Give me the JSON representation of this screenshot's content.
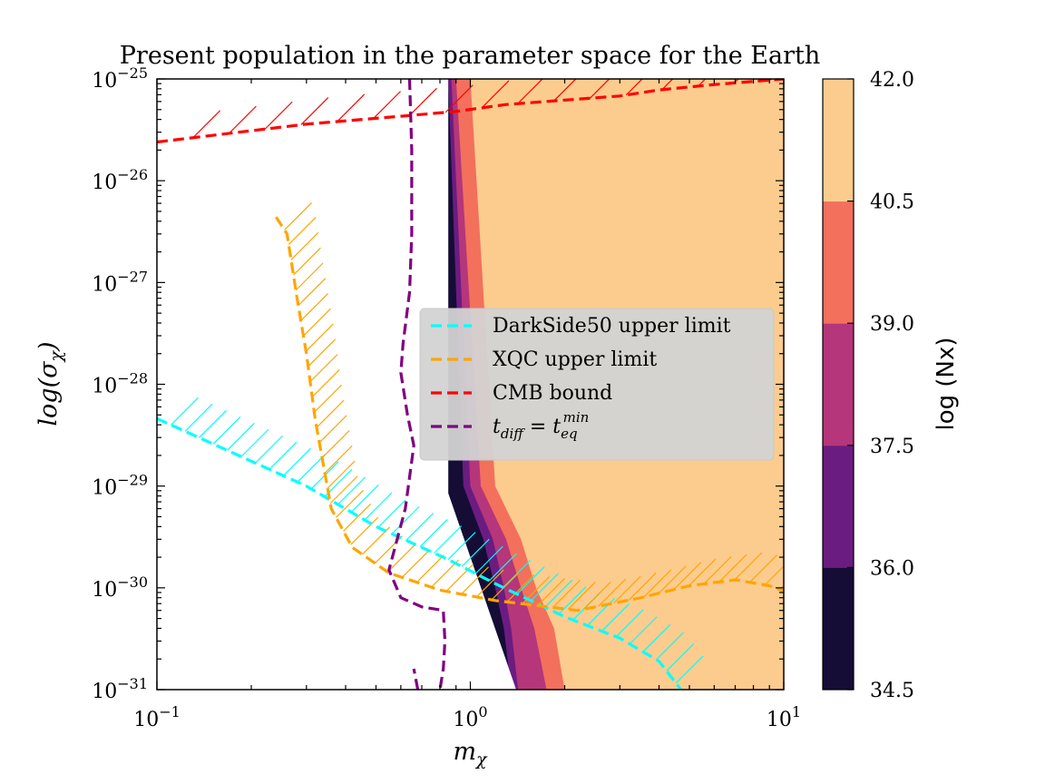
{
  "chart_data": {
    "type": "contourf",
    "title": "Present population in the parameter space for the Earth",
    "xlabel": "m_χ",
    "ylabel": "log(σ_χ)",
    "x_scale": "log",
    "y_scale": "log",
    "xlim": [
      0.1,
      10
    ],
    "ylim": [
      1e-31,
      1e-25
    ],
    "x_ticks": [
      {
        "value": 0.1,
        "base": "10",
        "exp": "−1"
      },
      {
        "value": 1,
        "base": "10",
        "exp": "0"
      },
      {
        "value": 10,
        "base": "10",
        "exp": "1"
      }
    ],
    "y_ticks": [
      {
        "value": 1e-25,
        "base": "10",
        "exp": "−25"
      },
      {
        "value": 1e-26,
        "base": "10",
        "exp": "−26"
      },
      {
        "value": 1e-27,
        "base": "10",
        "exp": "−27"
      },
      {
        "value": 1e-28,
        "base": "10",
        "exp": "−28"
      },
      {
        "value": 1e-29,
        "base": "10",
        "exp": "−29"
      },
      {
        "value": 1e-30,
        "base": "10",
        "exp": "−30"
      },
      {
        "value": 1e-31,
        "base": "10",
        "exp": "−31"
      }
    ],
    "colorbar": {
      "label": "log (Nx)",
      "levels": [
        "34.5",
        "36.0",
        "37.5",
        "39.0",
        "40.5",
        "42.0"
      ],
      "colors": [
        "#150d36",
        "#6b1c81",
        "#b5367a",
        "#f3705c",
        "#fccc8e"
      ]
    },
    "contour_region": {
      "boundary": [
        [
          0.85,
          1e-25
        ],
        [
          0.85,
          8.5e-30
        ],
        [
          1.4,
          1e-31
        ],
        [
          10,
          1e-31
        ],
        [
          10,
          1e-25
        ]
      ],
      "band_bounds_mchi": [
        [
          0.85,
          0.92,
          1.05,
          1.15,
          1.22,
          1.3
        ],
        [
          0.85,
          0.95,
          1.1,
          1.2,
          1.28,
          1.35
        ],
        [
          0.87,
          1.0,
          1.18,
          1.28,
          1.35,
          1.42
        ],
        [
          0.9,
          1.08,
          1.3,
          1.45,
          1.6,
          1.75
        ],
        [
          1.0,
          1.2,
          1.45,
          1.62,
          1.85,
          2.0
        ]
      ]
    },
    "series": [
      {
        "name": "DarkSide50 upper limit",
        "color": "#00ffff",
        "style": "dashed",
        "points": [
          [
            0.1,
            4.6e-29
          ],
          [
            0.3,
            1e-29
          ],
          [
            0.5,
            4e-30
          ],
          [
            0.85,
            1.9e-30
          ],
          [
            1.2,
            1.1e-30
          ],
          [
            2.0,
            5.2e-31
          ],
          [
            3.0,
            3.2e-31
          ],
          [
            4.0,
            1.9e-31
          ],
          [
            4.7,
            1e-31
          ]
        ]
      },
      {
        "name": "XQC upper limit",
        "color": "#ffa500",
        "style": "dashed",
        "points": [
          [
            0.24,
            4.4e-27
          ],
          [
            0.26,
            3e-27
          ],
          [
            0.28,
            7e-28
          ],
          [
            0.3,
            2e-28
          ],
          [
            0.32,
            4.5e-29
          ],
          [
            0.36,
            6e-30
          ],
          [
            0.42,
            2.5e-30
          ],
          [
            0.55,
            1.4e-30
          ],
          [
            0.8,
            9.5e-31
          ],
          [
            1.2,
            7.5e-31
          ],
          [
            2.2,
            6e-31
          ],
          [
            3.5,
            8e-31
          ],
          [
            5.0,
            1.05e-30
          ],
          [
            7.0,
            1.2e-30
          ],
          [
            9.0,
            1.05e-30
          ],
          [
            10,
            9.3e-31
          ]
        ]
      },
      {
        "name": "CMB bound",
        "color": "#ff0000",
        "style": "dashed",
        "points": [
          [
            0.1,
            2.4e-26
          ],
          [
            0.3,
            3.6e-26
          ],
          [
            0.6,
            4.3e-26
          ],
          [
            0.9,
            4.8e-26
          ],
          [
            1.3,
            5.6e-26
          ],
          [
            2.0,
            6.2e-26
          ],
          [
            3.0,
            6.8e-26
          ],
          [
            4.0,
            7.8e-26
          ],
          [
            6.0,
            8.8e-26
          ],
          [
            10,
            1e-25
          ]
        ]
      },
      {
        "name": "t_diff = t_eq^min",
        "color": "#800080",
        "style": "dashed",
        "points": [
          [
            0.64,
            1e-25
          ],
          [
            0.65,
            2e-26
          ],
          [
            0.65,
            3e-27
          ],
          [
            0.64,
            8e-28
          ],
          [
            0.61,
            2.5e-28
          ],
          [
            0.6,
            1.3e-28
          ],
          [
            0.63,
            5e-29
          ],
          [
            0.66,
            2.5e-29
          ],
          [
            0.62,
            6e-30
          ],
          [
            0.55,
            1.5e-30
          ],
          [
            0.6,
            8e-31
          ],
          [
            0.7,
            6.5e-31
          ],
          [
            0.82,
            6e-31
          ],
          [
            0.83,
            3e-31
          ],
          [
            0.82,
            1.6e-31
          ],
          [
            0.8,
            1e-31
          ]
        ]
      },
      {
        "name": "",
        "color": "#800080",
        "style": "dashed",
        "points": [
          [
            0.68,
            1e-31
          ],
          [
            0.66,
            1.6e-31
          ]
        ]
      }
    ],
    "legend": {
      "position": "center-right",
      "entries": [
        {
          "label": "DarkSide50 upper limit",
          "color": "#00ffff"
        },
        {
          "label": "XQC upper limit",
          "color": "#ffa500"
        },
        {
          "label": "CMB bound",
          "color": "#ff0000"
        },
        {
          "label": "t_diff = t_eq^min",
          "color": "#800080"
        }
      ]
    }
  }
}
